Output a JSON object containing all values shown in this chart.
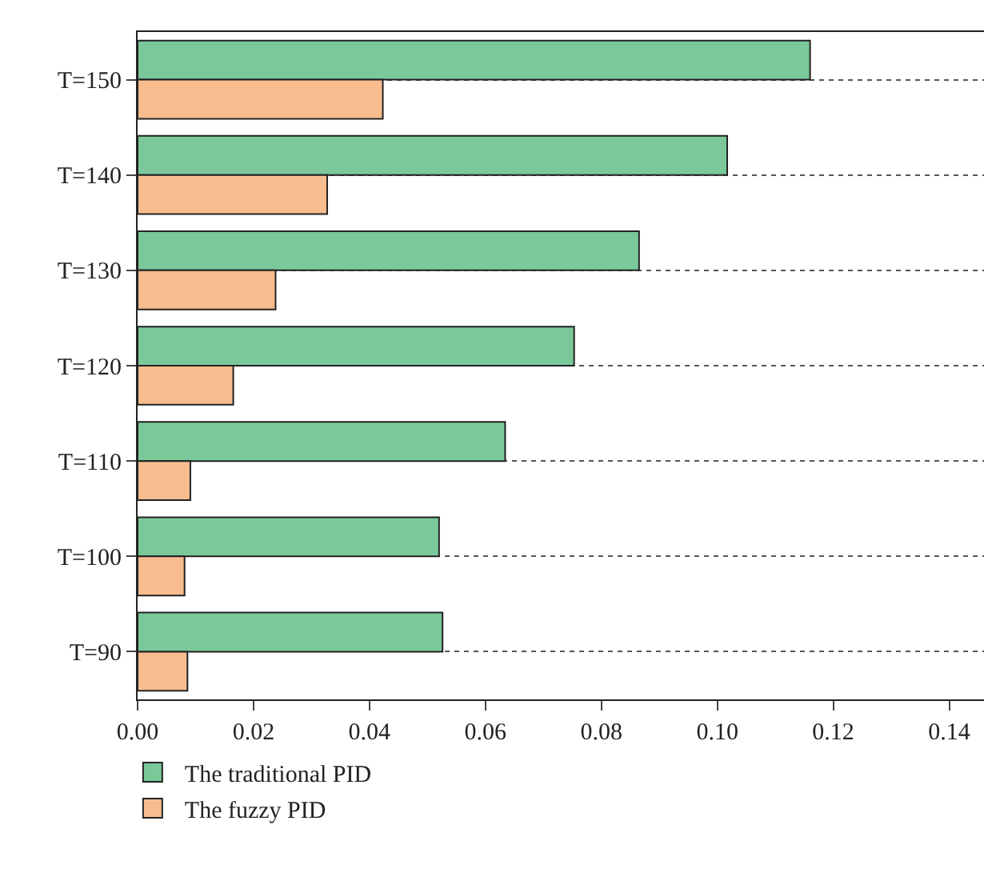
{
  "chart_data": {
    "type": "bar",
    "orientation": "horizontal",
    "categories": [
      "T=150",
      "T=140",
      "T=130",
      "T=120",
      "T=110",
      "T=100",
      "T=90"
    ],
    "series": [
      {
        "name": "The traditional PID",
        "color": "#7bc99a",
        "values": [
          0.116,
          0.1017,
          0.0865,
          0.0753,
          0.0634,
          0.052,
          0.0526
        ]
      },
      {
        "name": "The fuzzy PID",
        "color": "#f8bd8e",
        "values": [
          0.0423,
          0.0327,
          0.0238,
          0.0165,
          0.0091,
          0.0081,
          0.0086
        ]
      }
    ],
    "xlim": [
      0,
      0.146
    ],
    "xticks": [
      {
        "value": 0,
        "label": "0.00"
      },
      {
        "value": 0.02,
        "label": "0.02"
      },
      {
        "value": 0.04,
        "label": "0.04"
      },
      {
        "value": 0.06,
        "label": "0.06"
      },
      {
        "value": 0.08,
        "label": "0.08"
      },
      {
        "value": 0.1,
        "label": "0.10"
      },
      {
        "value": 0.12,
        "label": "0.12"
      },
      {
        "value": 0.14,
        "label": "0.14"
      }
    ],
    "grid": "y",
    "line_style": "dotted",
    "legend": "bottom left"
  }
}
